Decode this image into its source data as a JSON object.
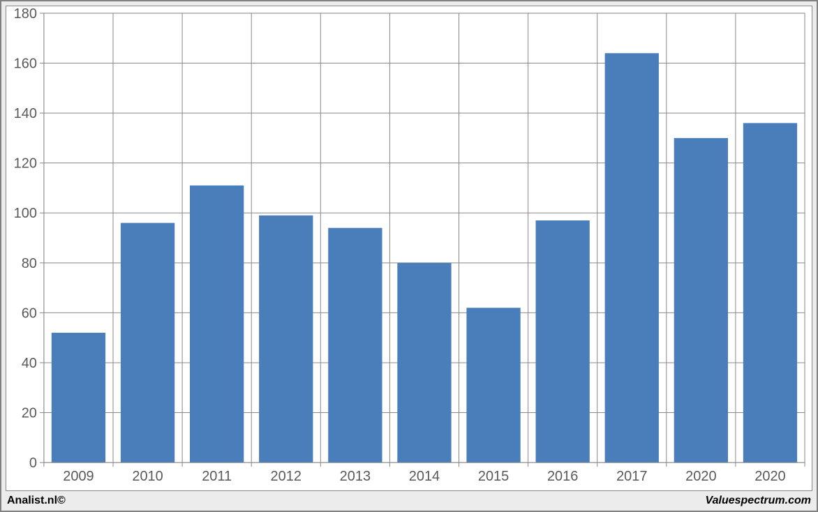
{
  "chart": {
    "type": "bar",
    "categories": [
      "2009",
      "2010",
      "2011",
      "2012",
      "2013",
      "2014",
      "2015",
      "2016",
      "2017",
      "2020",
      "2020"
    ],
    "values": [
      52,
      96,
      111,
      99,
      94,
      80,
      62,
      97,
      164,
      130,
      136
    ],
    "bar_color": "#4a7ebb",
    "ylim_min": 0,
    "ylim_max": 180,
    "ytick_step": 20,
    "yticks": [
      "0",
      "20",
      "40",
      "60",
      "80",
      "100",
      "120",
      "140",
      "160",
      "180"
    ],
    "background_color": "#ffffff",
    "plot_border_color": "#888888",
    "grid_color": "#888888",
    "tick_label_color": "#595959",
    "label_fontsize_pt": 15,
    "bar_width_ratio": 0.78,
    "outer_background": "#ececec",
    "outer_border_color": "#808080"
  },
  "footer": {
    "left": "Analist.nl©",
    "right": "Valuespectrum.com"
  }
}
